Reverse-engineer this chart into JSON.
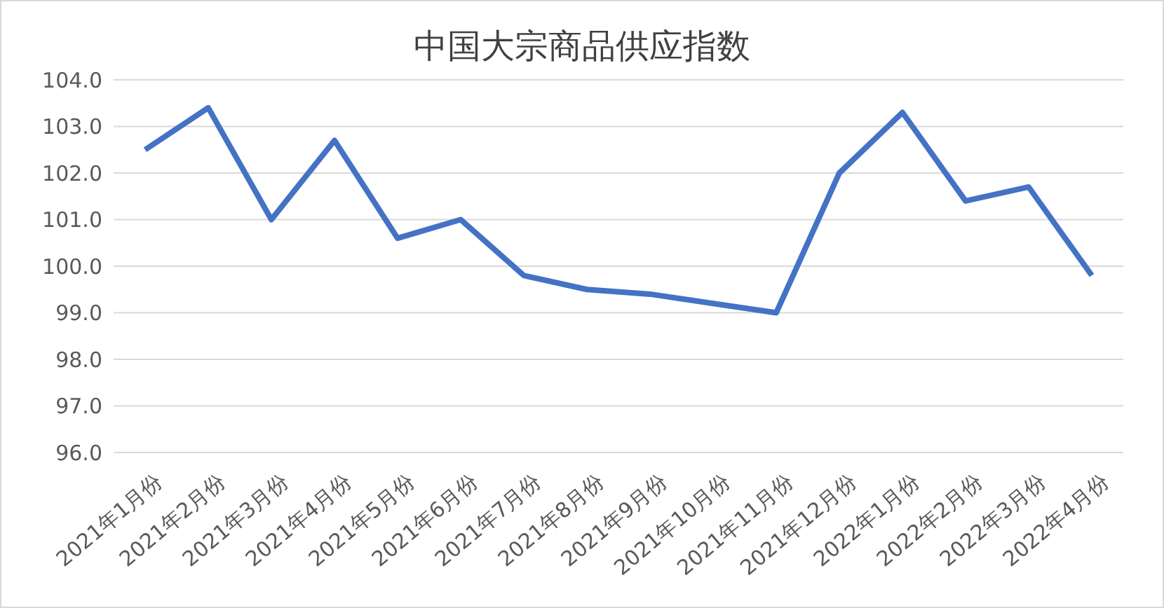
{
  "chart_data": {
    "type": "line",
    "title": "中国大宗商品供应指数",
    "categories": [
      "2021年1月份",
      "2021年2月份",
      "2021年3月份",
      "2021年4月份",
      "2021年5月份",
      "2021年6月份",
      "2021年7月份",
      "2021年8月份",
      "2021年9月份",
      "2021年10月份",
      "2021年11月份",
      "2021年12月份",
      "2022年1月份",
      "2022年2月份",
      "2022年3月份",
      "2022年4月份"
    ],
    "series": [
      {
        "color": "#4472c4",
        "values": [
          102.5,
          103.4,
          101.0,
          102.7,
          100.6,
          101.0,
          99.8,
          99.5,
          99.4,
          99.2,
          99.0,
          102.0,
          103.3,
          101.4,
          101.7,
          99.8
        ]
      }
    ],
    "ylim": [
      96,
      104
    ],
    "yticks": [
      {
        "value": 96,
        "label": "96.0"
      },
      {
        "value": 97,
        "label": "97.0"
      },
      {
        "value": 98,
        "label": "98.0"
      },
      {
        "value": 99,
        "label": "99.0"
      },
      {
        "value": 100,
        "label": "100.0"
      },
      {
        "value": 101,
        "label": "101.0"
      },
      {
        "value": 102,
        "label": "102.0"
      },
      {
        "value": 103,
        "label": "103.0"
      },
      {
        "value": 104,
        "label": "104.0"
      }
    ],
    "grid": "y",
    "marker": "none",
    "line_style": "solid"
  }
}
